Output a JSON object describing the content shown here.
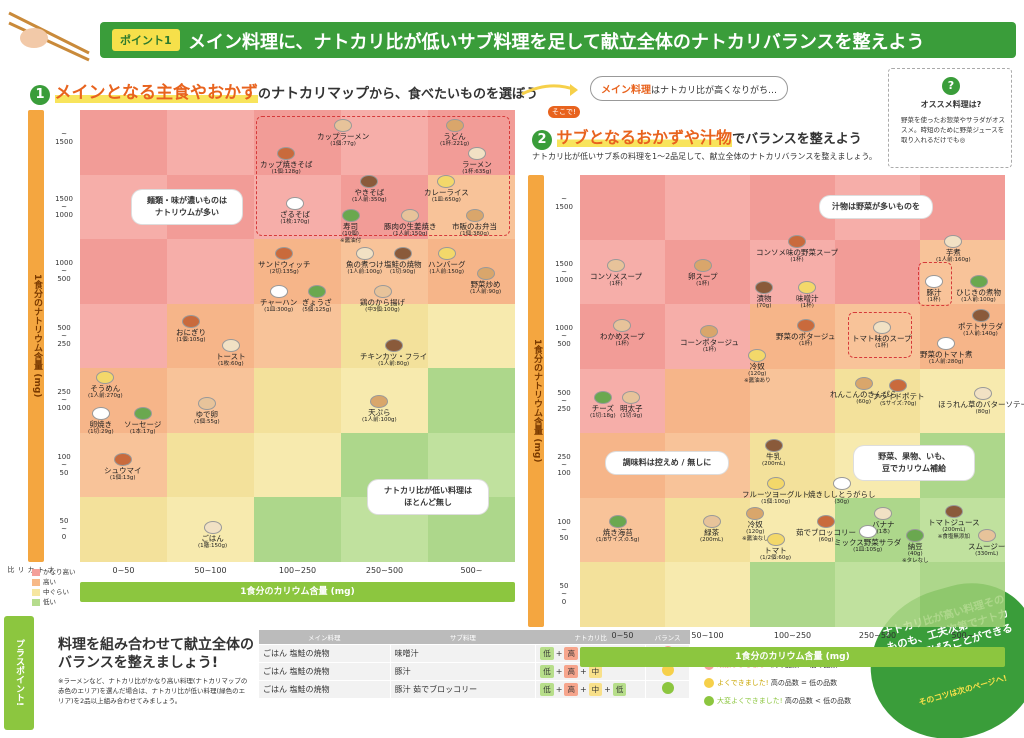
{
  "header": {
    "point_badge": "ポイント1",
    "title": "メイン料理に、ナトカリ比が低いサブ料理を足して献立全体のナトカリバランスを整えよう"
  },
  "step1": {
    "num": "1",
    "highlight": "メインとなる主食やおかず",
    "rest1": "の",
    "bold": "ナトカリマップ",
    "rest2": "から、食べたいものを選ぼう"
  },
  "main_note": {
    "bold": "メイン料理",
    "rest": "はナトカリ比が高くなりがち…"
  },
  "step2": {
    "soko": "そこで!",
    "num": "2",
    "highlight": "サブとなるおかずや汁物",
    "rest": "でバランスを整えよう",
    "sub": "ナトカリ比が低いサブ系の料理を1～2品足して、献立全体のナトカリバランスを整えましょう。"
  },
  "osusume": {
    "q": "?",
    "title": "オススメ料理は?",
    "body": "野菜を使ったお惣菜やサラダがオススメ。時短のために野菜ジュースを取り入れるだけでも◎"
  },
  "axis": {
    "y_title": "1食分のナトリウム含量",
    "y_unit": "(mg)",
    "x_title": "1食分のカリウム含量",
    "x_unit": "(mg)",
    "y_ticks": [
      "~\n1500",
      "1500\n~\n1000",
      "1000\n~\n500",
      "500\n~\n250",
      "250\n~\n100",
      "100\n~\n50",
      "50\n~\n0"
    ],
    "x_ticks": [
      "0~50",
      "50~100",
      "100~250",
      "250~500",
      "500~"
    ]
  },
  "legend": {
    "title": "ナトカリ比",
    "items": [
      "かなり高い",
      "高い",
      "中ぐらい",
      "低い"
    ],
    "colors": [
      "#f4a09a",
      "#f7b987",
      "#f6e6a0",
      "#b5dc8d"
    ]
  },
  "left_map": {
    "callout1": "麺類・味が濃いものは\nナトリウムが多い",
    "callout2": "ナトカリ比が低い料理は\nほとんど無し",
    "foods": [
      {
        "n": "カップラーメン",
        "s": "(1個:77g)"
      },
      {
        "n": "うどん",
        "s": "(1杯:221g)"
      },
      {
        "n": "カップ焼きそば",
        "s": "(1個:128g)"
      },
      {
        "n": "ラーメン",
        "s": "(1杯:635g)"
      },
      {
        "n": "やきそば",
        "s": "(1人前:350g)"
      },
      {
        "n": "カレーライス",
        "s": "(1皿:650g)"
      },
      {
        "n": "ざるそば",
        "s": "(1枚:170g)"
      },
      {
        "n": "寿司",
        "s": "(10個)\n※醤油付"
      },
      {
        "n": "豚肉の生姜焼き",
        "s": "(1人前:150g)"
      },
      {
        "n": "市販のお弁当",
        "s": "(1個:380g)"
      },
      {
        "n": "サンドウィッチ",
        "s": "(2切:135g)"
      },
      {
        "n": "魚の煮つけ",
        "s": "(1人前:100g)"
      },
      {
        "n": "塩鮭の焼物",
        "s": "(1切:90g)"
      },
      {
        "n": "ハンバーグ",
        "s": "(1人前:150g)"
      },
      {
        "n": "チャーハン",
        "s": "(1皿:300g)"
      },
      {
        "n": "ぎょうざ",
        "s": "(5個:125g)"
      },
      {
        "n": "鶏のから揚げ",
        "s": "(中3個:100g)"
      },
      {
        "n": "野菜炒め",
        "s": "(1人前:90g)"
      },
      {
        "n": "おにぎり",
        "s": "(1個:105g)"
      },
      {
        "n": "トースト",
        "s": "(1枚:60g)"
      },
      {
        "n": "チキンカツ・フライ",
        "s": "(1人前:80g)"
      },
      {
        "n": "そうめん",
        "s": "(1人前:270g)"
      },
      {
        "n": "卵焼き",
        "s": "(1切:29g)"
      },
      {
        "n": "ソーセージ",
        "s": "(1本:17g)"
      },
      {
        "n": "ゆで卵",
        "s": "(1個:55g)"
      },
      {
        "n": "天ぷら",
        "s": "(1人前:100g)"
      },
      {
        "n": "シュウマイ",
        "s": "(1個:13g)"
      },
      {
        "n": "ごはん",
        "s": "(1膳:150g)"
      }
    ]
  },
  "right_map": {
    "callout1": "汁物は野菜が多いものを",
    "callout2": "調味料は控えめ / 無しに",
    "callout3": "野菜、果物、いも、\n豆でカリウム補給",
    "foods": [
      {
        "n": "コンソメスープ",
        "s": "(1杯)"
      },
      {
        "n": "卵スープ",
        "s": "(1杯)"
      },
      {
        "n": "コンソメ味の野菜スープ",
        "s": "(1杯)"
      },
      {
        "n": "芋煮",
        "s": "(1人前:160g)"
      },
      {
        "n": "漬物",
        "s": "(70g)"
      },
      {
        "n": "味噌汁",
        "s": "(1杯)"
      },
      {
        "n": "豚汁",
        "s": "(1杯)"
      },
      {
        "n": "ひじきの煮物",
        "s": "(1人前:100g)"
      },
      {
        "n": "わかめスープ",
        "s": "(1杯)"
      },
      {
        "n": "コーンポタージュ",
        "s": "(1杯)"
      },
      {
        "n": "野菜のポタージュ",
        "s": "(1杯)"
      },
      {
        "n": "トマト味のスープ",
        "s": "(1杯)"
      },
      {
        "n": "ポテトサラダ",
        "s": "(1人前:140g)"
      },
      {
        "n": "冷奴",
        "s": "(120g)\n※醤油あり"
      },
      {
        "n": "野菜のトマト煮",
        "s": "(1人前:280g)"
      },
      {
        "n": "チーズ",
        "s": "(1切:18g)"
      },
      {
        "n": "明太子",
        "s": "(1切:9g)"
      },
      {
        "n": "れんこんのきんぴら",
        "s": "(60g)"
      },
      {
        "n": "フライドポテト",
        "s": "(Sサイズ:70g)"
      },
      {
        "n": "ほうれん草のバターソテー",
        "s": "(80g)"
      },
      {
        "n": "牛乳",
        "s": "(200mL)"
      },
      {
        "n": "フルーツヨーグルト",
        "s": "(1個:100g)"
      },
      {
        "n": "焼きししとうがらし",
        "s": "(30g)"
      },
      {
        "n": "焼き海苔",
        "s": "(1/8サイズ:0.5g)"
      },
      {
        "n": "緑茶",
        "s": "(200mL)"
      },
      {
        "n": "冷奴",
        "s": "(120g)\n※醤油なし"
      },
      {
        "n": "茹でブロッコリー",
        "s": "(60g)"
      },
      {
        "n": "バナナ",
        "s": "(1本)"
      },
      {
        "n": "トマトジュース",
        "s": "(200mL)\n※食塩無添加"
      },
      {
        "n": "トマト",
        "s": "(1/2個:60g)"
      },
      {
        "n": "ミックス野菜サラダ",
        "s": "(1皿:105g)"
      },
      {
        "n": "納豆",
        "s": "(40g)\n※タレなし"
      },
      {
        "n": "スムージー",
        "s": "(330mL)"
      }
    ]
  },
  "plus": {
    "bar": "プラスポイント!",
    "title": "料理を組み合わせて献立全体の\nバランスを整えましょう!",
    "note": "※ラーメンなど、ナトカリ比がかなり高い料理(ナトカリマップの赤色のエリア)を選んだ場合は、ナトカリ比が低い料理(緑色のエリア)を2品以上組み合わせてみましょう。"
  },
  "table": {
    "headers": [
      "メイン料理",
      "サブ料理",
      "ナトカリ比",
      "バランス"
    ],
    "rows": [
      {
        "main1": "ごはん",
        "main2": "塩鮭の焼物",
        "sub": [
          "味噌汁"
        ],
        "ratio": [
          "低",
          "+",
          "高",
          "+",
          "高"
        ]
      },
      {
        "main1": "ごはん",
        "main2": "塩鮭の焼物",
        "sub": [
          "豚汁"
        ],
        "ratio": [
          "低",
          "+",
          "高",
          "+",
          "中"
        ]
      },
      {
        "main1": "ごはん",
        "main2": "塩鮭の焼物",
        "sub": [
          "豚汁",
          "茹でブロッコリー"
        ],
        "ratio": [
          "低",
          "+",
          "高",
          "+",
          "中",
          "+",
          "低"
        ]
      }
    ]
  },
  "evaluations": [
    {
      "label": "頑張りましょう!",
      "rule": "高の品数 > 低の品数",
      "color": "#f4a09a"
    },
    {
      "label": "よくできました!",
      "rule": "高の品数 = 低の品数",
      "color": "#f6d04a"
    },
    {
      "label": "大変よくできました!",
      "rule": "高の品数 < 低の品数",
      "color": "#8cc63f"
    }
  ],
  "circle": {
    "text": "ナトカリ比が高い料理そのものも、工夫次第でナトカリ比を下げることができるのです!",
    "tip": "そのコツは次のページへ!"
  }
}
